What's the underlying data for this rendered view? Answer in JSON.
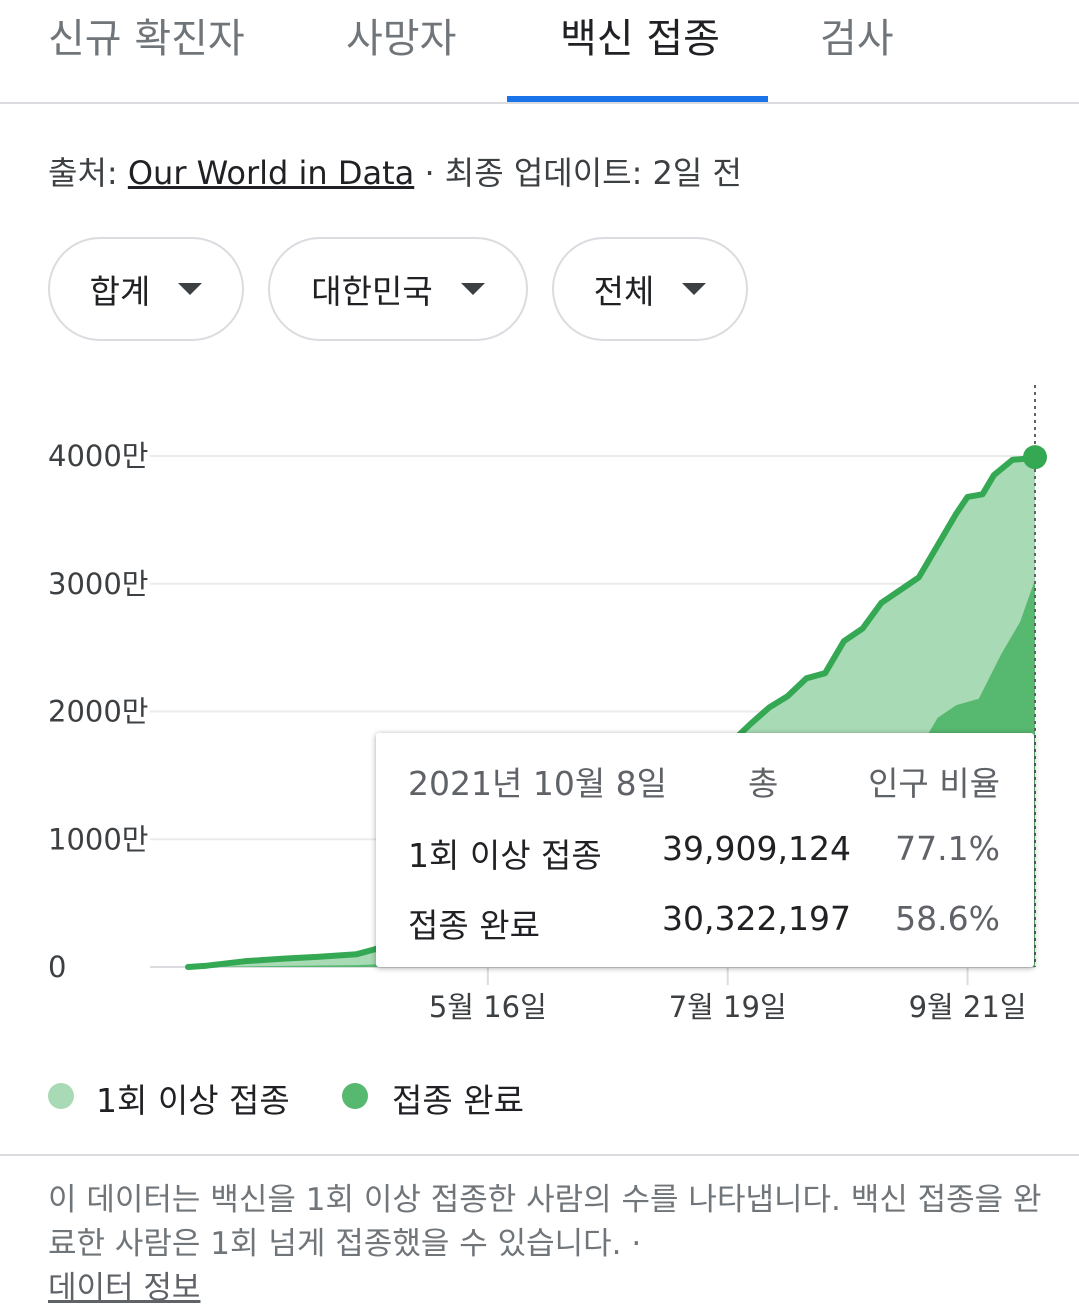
{
  "tabs": [
    {
      "label": "신규 확진자"
    },
    {
      "label": "사망자"
    },
    {
      "label": "백신 접종"
    },
    {
      "label": "검사"
    }
  ],
  "source": {
    "prefix": "출처: ",
    "link": "Our World in Data",
    "suffix": " · 최종 업데이트: 2일 전"
  },
  "filters": [
    {
      "label": "합계"
    },
    {
      "label": "대한민국"
    },
    {
      "label": "전체"
    }
  ],
  "chart_data": {
    "type": "area",
    "y_ticks": [
      "0",
      "1000만",
      "2000만",
      "3000만",
      "4000만"
    ],
    "ylim": [
      0,
      45000000
    ],
    "x_ticks": [
      {
        "label": "5월 16일",
        "day": 135
      },
      {
        "label": "7월 19일",
        "day": 199
      },
      {
        "label": "9월 21일",
        "day": 263
      }
    ],
    "xlim_days": [
      55,
      281
    ],
    "series": [
      {
        "name": "1회 이상 접종",
        "color": "#a8dab5",
        "line_color": "#34a853",
        "points": [
          [
            55,
            0
          ],
          [
            60,
            100000
          ],
          [
            70,
            450000
          ],
          [
            80,
            650000
          ],
          [
            90,
            800000
          ],
          [
            100,
            1000000
          ],
          [
            105,
            1400000
          ],
          [
            115,
            2500000
          ],
          [
            125,
            3400000
          ],
          [
            135,
            4000000
          ],
          [
            145,
            7000000
          ],
          [
            155,
            10000000
          ],
          [
            160,
            14000000
          ],
          [
            170,
            15000000
          ],
          [
            180,
            15300000
          ],
          [
            190,
            15600000
          ],
          [
            195,
            16000000
          ],
          [
            200,
            17600000
          ],
          [
            205,
            19000000
          ],
          [
            210,
            20300000
          ],
          [
            215,
            21200000
          ],
          [
            220,
            22600000
          ],
          [
            225,
            23000000
          ],
          [
            230,
            25500000
          ],
          [
            235,
            26500000
          ],
          [
            240,
            28500000
          ],
          [
            245,
            29500000
          ],
          [
            250,
            30500000
          ],
          [
            255,
            33000000
          ],
          [
            260,
            35500000
          ],
          [
            263,
            36800000
          ],
          [
            267,
            37000000
          ],
          [
            270,
            38500000
          ],
          [
            275,
            39700000
          ],
          [
            279,
            39800000
          ],
          [
            281,
            39909124
          ]
        ]
      },
      {
        "name": "접종 완료",
        "color": "#57b86f",
        "points": [
          [
            55,
            0
          ],
          [
            100,
            150000
          ],
          [
            130,
            500000
          ],
          [
            160,
            1500000
          ],
          [
            190,
            5000000
          ],
          [
            200,
            7000000
          ],
          [
            210,
            9000000
          ],
          [
            220,
            11000000
          ],
          [
            240,
            13000000
          ],
          [
            248,
            16000000
          ],
          [
            255,
            19500000
          ],
          [
            260,
            20500000
          ],
          [
            266,
            21000000
          ],
          [
            272,
            24500000
          ],
          [
            277,
            27000000
          ],
          [
            281,
            30322197
          ]
        ]
      }
    ],
    "selected_day": 281
  },
  "tooltip": {
    "date": "2021년 10월 8일",
    "total_header": "총",
    "ratio_header": "인구 비율",
    "rows": [
      {
        "label": "1회 이상 접종",
        "total": "39,909,124",
        "ratio": "77.1%"
      },
      {
        "label": "접종 완료",
        "total": "30,322,197",
        "ratio": "58.6%"
      }
    ]
  },
  "legend": [
    {
      "label": "1회 이상 접종",
      "color": "#a8dab5"
    },
    {
      "label": "접종 완료",
      "color": "#57b86f"
    }
  ],
  "note": {
    "text": "이 데이터는 백신을 1회 이상 접종한 사람의 수를 나타냅니다. 백신 접종을 완료한 사람은 1회 넘게 접종했을 수 있습니다.  · ",
    "link": "데이터 정보"
  }
}
